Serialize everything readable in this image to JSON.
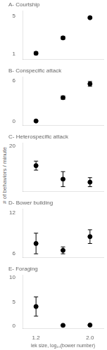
{
  "chart_data": [
    {
      "type": "scatter",
      "title": "A- Courtship",
      "x": [
        1.2,
        1.6,
        2.0
      ],
      "values": [
        1.1,
        2.7,
        4.8
      ],
      "yerr_lo": [
        0.15,
        0.15,
        0.1
      ],
      "yerr_hi": [
        0.15,
        0.15,
        0.1
      ],
      "xlim": [
        1.0,
        2.2
      ],
      "xticks": [
        1.2,
        {
          "value": 2.0,
          "label": "2.0"
        }
      ],
      "ylim": [
        0.5,
        5.5
      ],
      "yticks": [
        1,
        5
      ],
      "grid": false,
      "color": "black",
      "marker": "circle",
      "tick_labels": "y"
    },
    {
      "type": "scatter",
      "title": "B- Conspecific attack",
      "x": [
        1.2,
        1.6,
        2.0
      ],
      "values": [
        0.1,
        3.5,
        5.5
      ],
      "yerr_lo": [
        0.05,
        0.25,
        0.35
      ],
      "yerr_hi": [
        0.05,
        0.25,
        0.35
      ],
      "xlim": [
        1.0,
        2.2
      ],
      "xticks": [
        1.2,
        {
          "value": 2.0,
          "label": "2.0"
        }
      ],
      "ylim": [
        -0.5,
        6.5
      ],
      "yticks": [
        0,
        6
      ],
      "grid": false,
      "color": "black",
      "marker": "circle",
      "tick_labels": "y"
    },
    {
      "type": "scatter",
      "title": "C- Heterospecific attack",
      "x": [
        1.2,
        1.6,
        2.0
      ],
      "values": [
        13.5,
        9.0,
        8.0
      ],
      "yerr_lo": [
        1.5,
        2.5,
        1.5
      ],
      "yerr_hi": [
        1.5,
        2.5,
        1.5
      ],
      "xlim": [
        1.0,
        2.2
      ],
      "xticks": [
        1.2,
        {
          "value": 2.0,
          "label": "2.0"
        }
      ],
      "ylim": [
        5,
        21
      ],
      "yticks": [
        20
      ],
      "ylabel": "# of behaviors / minute",
      "grid": false,
      "color": "black",
      "marker": "circle",
      "tick_labels": "y"
    },
    {
      "type": "scatter",
      "title": "D- Bower building",
      "x": [
        1.2,
        1.6,
        2.0
      ],
      "values": [
        7.5,
        6.5,
        8.5
      ],
      "yerr_lo": [
        1.5,
        0.5,
        1.0
      ],
      "yerr_hi": [
        1.5,
        0.5,
        1.0
      ],
      "xlim": [
        1.0,
        2.2
      ],
      "xticks": [
        1.2,
        {
          "value": 2.0,
          "label": "2.0"
        }
      ],
      "ylim": [
        5.5,
        12.5
      ],
      "yticks": [
        6,
        12
      ],
      "grid": false,
      "color": "black",
      "marker": "circle",
      "tick_labels": "y"
    },
    {
      "type": "scatter",
      "title": "E- Foraging",
      "x": [
        1.2,
        1.6,
        2.0
      ],
      "values": [
        4.0,
        0.1,
        0.15
      ],
      "yerr_lo": [
        2.0,
        0.05,
        0.05
      ],
      "yerr_hi": [
        2.0,
        0.05,
        0.05
      ],
      "xlim": [
        1.0,
        2.2
      ],
      "xticks": [
        1.2,
        {
          "value": 2.0,
          "label": "2.0"
        }
      ],
      "ylim": [
        -0.5,
        10.5
      ],
      "yticks": [
        0,
        5,
        10
      ],
      "xlabel": "lek size, log₁₀(bower number)",
      "grid": false,
      "color": "black",
      "marker": "circle"
    }
  ]
}
